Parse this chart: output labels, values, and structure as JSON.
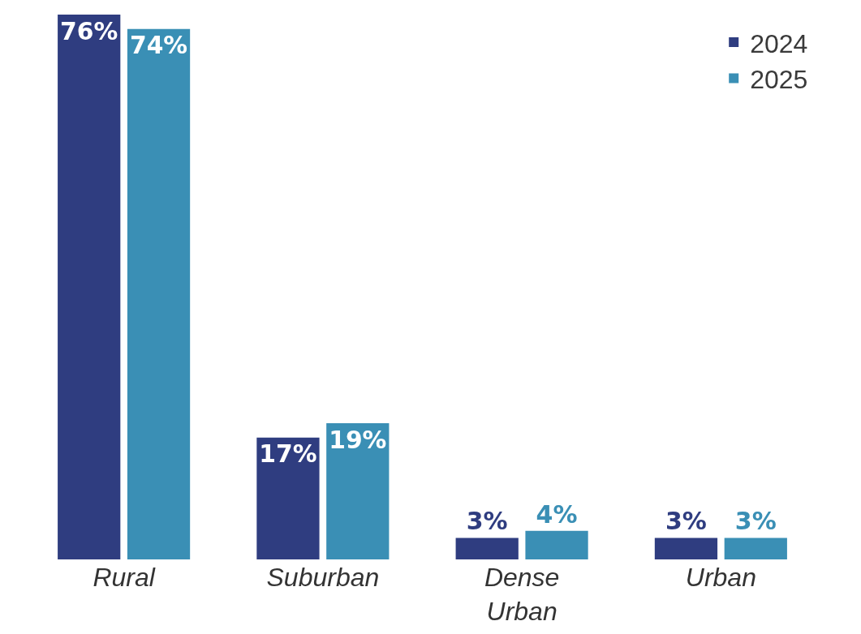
{
  "chart_data": {
    "type": "bar",
    "categories": [
      "Rural",
      "Suburban",
      "Dense Urban",
      "Urban"
    ],
    "series": [
      {
        "name": "2024",
        "color": "#2f3d80",
        "values": [
          76,
          17,
          3,
          3
        ],
        "value_labels": [
          "76%",
          "17%",
          "3%",
          "3%"
        ]
      },
      {
        "name": "2025",
        "color": "#3a8fb5",
        "values": [
          74,
          19,
          4,
          3
        ],
        "value_labels": [
          "74%",
          "19%",
          "4%",
          "3%"
        ]
      }
    ],
    "legend": "top right",
    "grid": false
  }
}
